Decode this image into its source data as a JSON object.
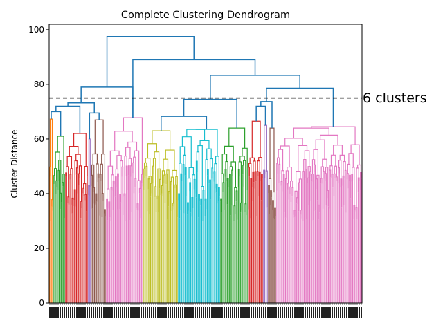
{
  "chart_data": {
    "type": "dendrogram",
    "title": "Complete Clustering Dendrogram",
    "xlabel": "",
    "ylabel": "Cluster Distance",
    "ylim": [
      0,
      102
    ],
    "yticks": [
      0,
      20,
      40,
      60,
      80,
      100
    ],
    "grid": false,
    "cut_line": {
      "y": 75,
      "style": "dashed",
      "label": "6 clusters"
    },
    "top_merges": [
      {
        "height": 97.5,
        "link": "root"
      },
      {
        "height": 89.0,
        "link": "right-group"
      },
      {
        "height": 83.3,
        "link": "right-sub"
      },
      {
        "height": 79.0,
        "link": "left-group"
      },
      {
        "height": 78.6,
        "link": "right-right"
      },
      {
        "height": 74.5,
        "link": "mid-left"
      }
    ],
    "clusters": [
      {
        "color": "#ff7f0e",
        "height": 67.3
      },
      {
        "color": "#2ca02c",
        "height": 61.0
      },
      {
        "color": "#d62728",
        "height": 62.0
      },
      {
        "color": "#9467bd",
        "height": 60.0
      },
      {
        "color": "#8c564b",
        "height": 67.0
      },
      {
        "color": "#e377c2",
        "height": 67.8
      },
      {
        "color": "#bcbd22",
        "height": 63.0
      },
      {
        "color": "#17becf",
        "height": 63.5
      },
      {
        "color": "#2ca02c",
        "height": 64.0
      },
      {
        "color": "#d62728",
        "height": 66.5
      },
      {
        "color": "#9467bd",
        "height": 65.0
      },
      {
        "color": "#8c564b",
        "height": 64.0
      },
      {
        "color": "#e377c2",
        "height": 64.5
      }
    ],
    "colors": {
      "link": "#1f77b4",
      "cut_line": "#000000"
    }
  }
}
